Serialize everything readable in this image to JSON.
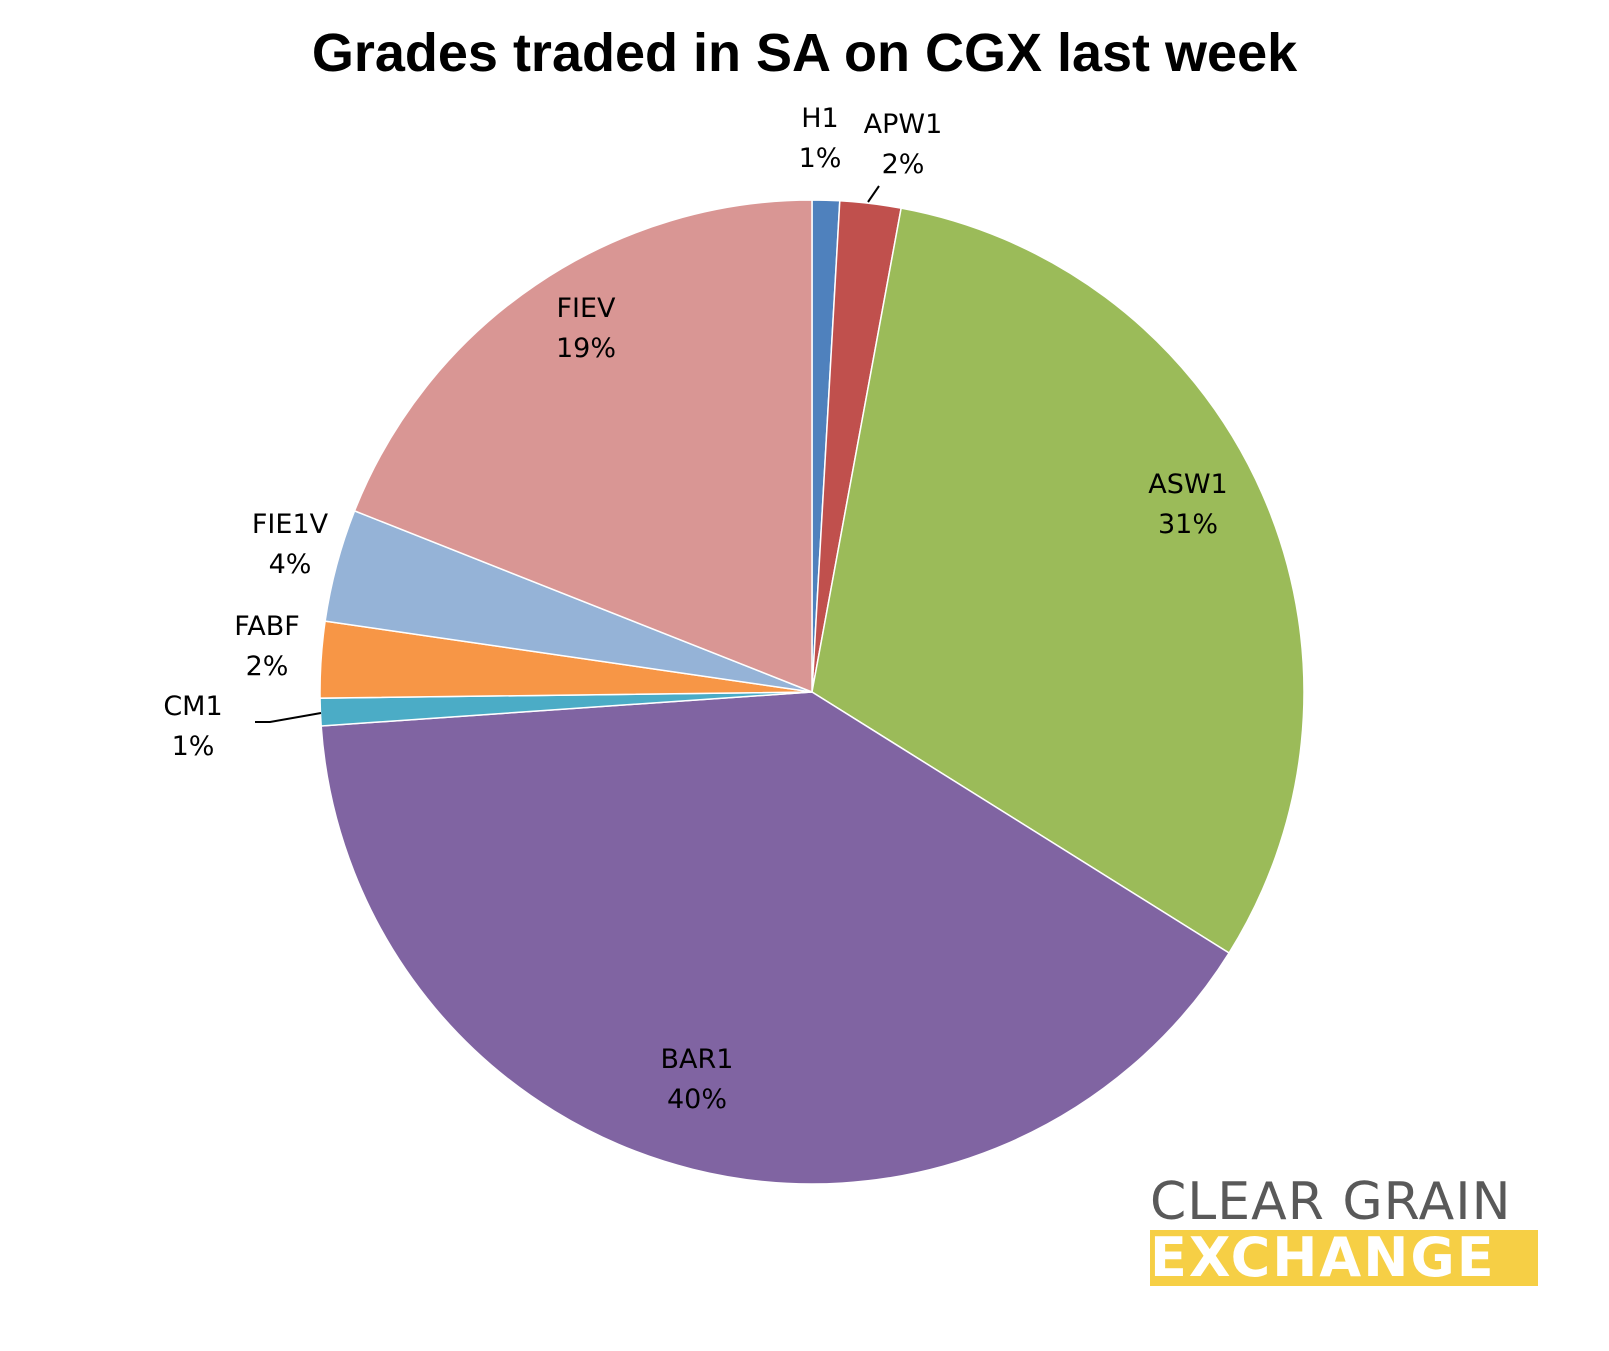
{
  "chart_data": {
    "type": "pie",
    "title": "Grades traded in SA on CGX last week",
    "slices": [
      {
        "label": "H1",
        "percent_label": "1%",
        "value": 0.9,
        "color": "#4f81bd"
      },
      {
        "label": "APW1",
        "percent_label": "2%",
        "value": 2.0,
        "color": "#c0504d"
      },
      {
        "label": "ASW1",
        "percent_label": "31%",
        "value": 31.0,
        "color": "#9bbb59"
      },
      {
        "label": "BAR1",
        "percent_label": "40%",
        "value": 40.0,
        "color": "#8064a2"
      },
      {
        "label": "CM1",
        "percent_label": "1%",
        "value": 0.9,
        "color": "#4bacc6"
      },
      {
        "label": "FABF",
        "percent_label": "2%",
        "value": 2.5,
        "color": "#f79646"
      },
      {
        "label": "FIE1V",
        "percent_label": "4%",
        "value": 3.7,
        "color": "#95b3d7"
      },
      {
        "label": "FIEV",
        "percent_label": "19%",
        "value": 19.0,
        "color": "#d99694"
      }
    ]
  },
  "logo": {
    "line1": "CLEAR GRAIN",
    "line2": "EXCHANGE"
  }
}
